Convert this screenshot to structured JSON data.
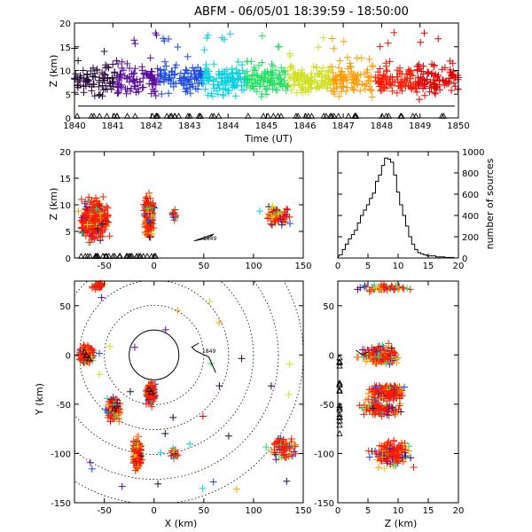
{
  "title": "ABFM - 06/05/01 18:39:59 - 18:50:00",
  "chart_data": [
    {
      "id": "time_height",
      "type": "scatter",
      "xlabel": "Time (UT)",
      "ylabel": "Z (km)",
      "xlim": [
        1840,
        1850
      ],
      "ylim": [
        0,
        20
      ],
      "xticks": [
        "1840",
        "1841",
        "1842",
        "1843",
        "1844",
        "1845",
        "1846",
        "1847",
        "1848",
        "1849",
        "1850"
      ],
      "yticks": [
        "0",
        "5",
        "10",
        "15",
        "20"
      ],
      "color_by": "time",
      "colormap": [
        "#2a0a3a",
        "#5a0aa0",
        "#1a4ae0",
        "#00d0e0",
        "#20e060",
        "#d0e020",
        "#ff9a00",
        "#ff1a00",
        "#e00000"
      ],
      "z_range_main": [
        3,
        13
      ],
      "station_markers_z": 0
    },
    {
      "id": "xz_projection",
      "type": "scatter",
      "xlabel": "",
      "ylabel": "Z (km)",
      "xlim": [
        -80,
        150
      ],
      "ylim": [
        0,
        20
      ],
      "xticks": [
        "-50",
        "0",
        "50",
        "100",
        "150"
      ],
      "yticks": [
        "0",
        "5",
        "10",
        "15",
        "20"
      ],
      "annotation": "1849"
    },
    {
      "id": "height_histogram",
      "type": "line",
      "xlabel": "",
      "ylabel": "number of sources",
      "xlim": [
        0,
        20
      ],
      "ylim": [
        0,
        1000
      ],
      "xticks": [
        "0",
        "5",
        "10",
        "15",
        "20"
      ],
      "yticks": [
        "0",
        "200",
        "400",
        "600",
        "800",
        "1000"
      ],
      "x": [
        0.5,
        1.0,
        1.5,
        2.0,
        2.5,
        3.0,
        3.5,
        4.0,
        4.5,
        5.0,
        5.5,
        6.0,
        6.5,
        7.0,
        7.5,
        8.0,
        8.5,
        9.0,
        9.5,
        10.0,
        10.5,
        11.0,
        11.5,
        12.0,
        12.5,
        13.0,
        13.5,
        14.0,
        14.5,
        15.0,
        15.5,
        16.0,
        16.5,
        17.0,
        17.5,
        18.0,
        18.5,
        19.0,
        19.5
      ],
      "values": [
        30,
        80,
        130,
        180,
        220,
        260,
        330,
        400,
        450,
        500,
        560,
        610,
        720,
        780,
        870,
        940,
        930,
        900,
        780,
        620,
        500,
        400,
        300,
        200,
        130,
        80,
        50,
        40,
        30,
        20,
        20,
        20,
        10,
        10,
        10,
        5,
        5,
        5,
        0
      ]
    },
    {
      "id": "plan_view",
      "type": "scatter",
      "xlabel": "X (km)",
      "ylabel": "Y (km)",
      "xlim": [
        -80,
        150
      ],
      "ylim": [
        -150,
        75
      ],
      "xticks": [
        "-50",
        "0",
        "50",
        "100",
        "150"
      ],
      "yticks": [
        "-150",
        "-100",
        "-50",
        "0",
        "50"
      ],
      "range_rings_km": [
        25,
        50,
        75,
        100,
        125,
        150
      ],
      "annotation": "1849",
      "clusters": [
        {
          "x": -68,
          "y": 0
        },
        {
          "x": -40,
          "y": -55
        },
        {
          "x": -3,
          "y": -38
        },
        {
          "x": -17,
          "y": -100
        },
        {
          "x": 130,
          "y": -95
        },
        {
          "x": 20,
          "y": -100
        },
        {
          "x": -55,
          "y": 70
        }
      ]
    },
    {
      "id": "zy_projection",
      "type": "scatter",
      "xlabel": "Z (km)",
      "ylabel": "",
      "xlim": [
        0,
        20
      ],
      "ylim": [
        -150,
        75
      ],
      "xticks": [
        "0",
        "5",
        "10",
        "15",
        "20"
      ],
      "yticks": [
        "-150",
        "-100",
        "-50",
        "0",
        "50"
      ]
    }
  ]
}
